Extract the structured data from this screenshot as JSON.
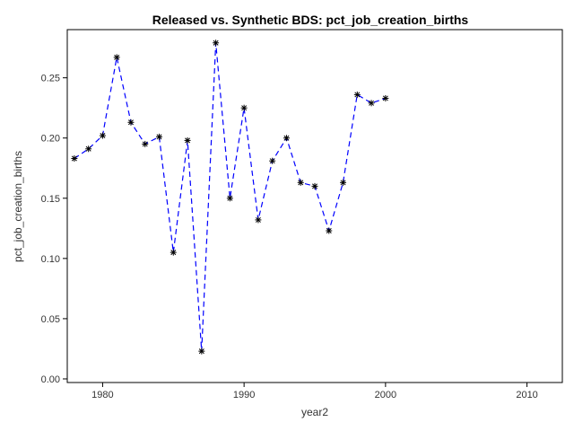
{
  "chart_data": {
    "type": "line",
    "title": "Released vs. Synthetic BDS: pct_job_creation_births",
    "xlabel": "year2",
    "ylabel": "pct_job_creation_births",
    "xlim": [
      1977.5,
      2012.5
    ],
    "ylim": [
      -0.003,
      0.29
    ],
    "x_ticks": [
      1980,
      1990,
      2000,
      2010
    ],
    "y_ticks": [
      0.0,
      0.05,
      0.1,
      0.15,
      0.2,
      0.25
    ],
    "y_tick_labels": [
      "0.00",
      "0.05",
      "0.10",
      "0.15",
      "0.20",
      "0.25"
    ],
    "grid": false,
    "legend": "none",
    "series": [
      {
        "color": "#0000ff",
        "marker": "asterisk",
        "line_style": "dashed",
        "x": [
          1978,
          1979,
          1980,
          1981,
          1982,
          1983,
          1984,
          1985,
          1986,
          1987,
          1988,
          1989,
          1990,
          1991,
          1992,
          1993,
          1994,
          1995,
          1996,
          1997,
          1998,
          1999,
          2000
        ],
        "y": [
          0.183,
          0.191,
          0.202,
          0.267,
          0.213,
          0.195,
          0.201,
          0.105,
          0.198,
          0.023,
          0.279,
          0.15,
          0.225,
          0.132,
          0.181,
          0.2,
          0.163,
          0.16,
          0.123,
          0.163,
          0.236,
          0.229,
          0.233
        ]
      }
    ]
  }
}
